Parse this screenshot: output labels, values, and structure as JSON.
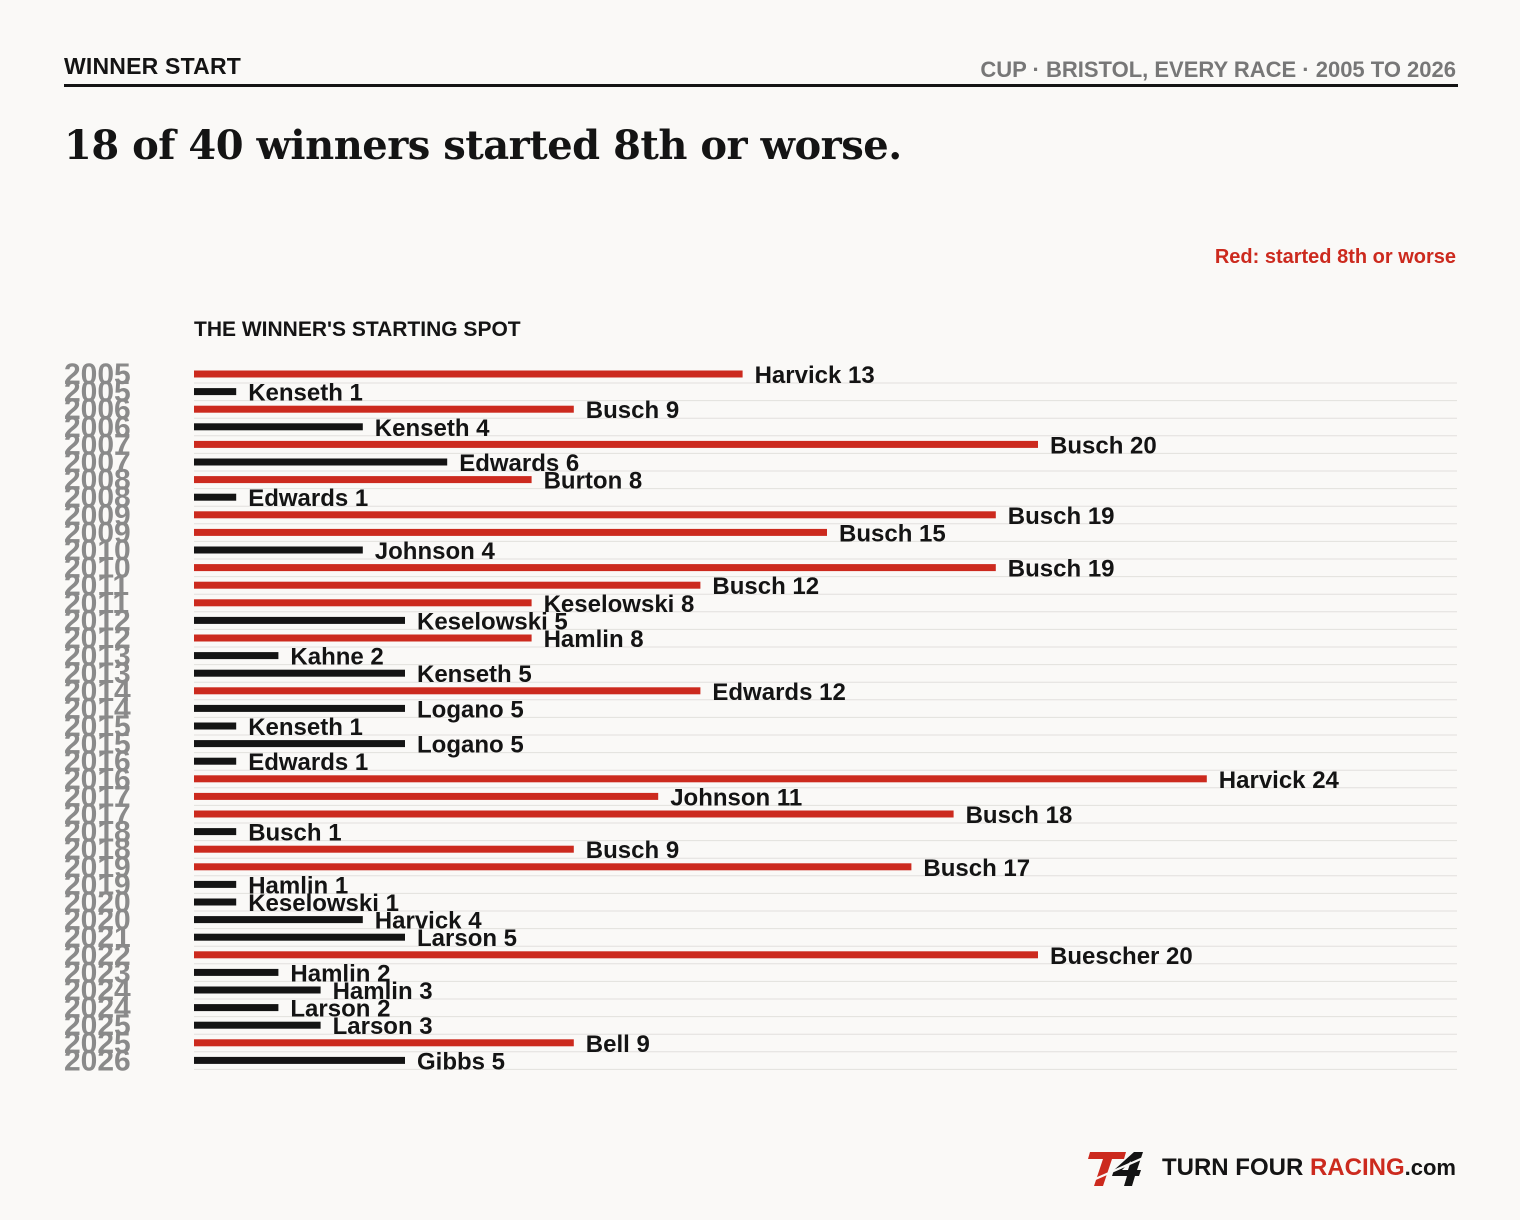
{
  "header": {
    "kicker": "WINNER START",
    "meta": "CUP · BRISTOL, EVERY RACE · 2005 TO 2026",
    "headline": "18 of 40 winners started 8th or worse.",
    "note": "Red: started 8th or worse"
  },
  "colors": {
    "highlight": "#cc2a1e",
    "normal": "#141414",
    "year_label": "#8a8a8a",
    "gridline": "#e2e0dd"
  },
  "footer": {
    "logo_icon": "t4-logo-icon",
    "brand_part1": "TURN FOUR ",
    "brand_part2": "RACING",
    "brand_part3": ".com"
  },
  "chart_data": {
    "type": "bar",
    "orientation": "horizontal",
    "xlabel": "THE WINNER'S STARTING SPOT",
    "xlim": [
      0,
      30
    ],
    "highlight_threshold": 8,
    "rows": [
      {
        "year": "2005",
        "driver": "Harvick",
        "start": 13
      },
      {
        "year": "2005",
        "driver": "Kenseth",
        "start": 1
      },
      {
        "year": "2006",
        "driver": "Busch",
        "start": 9
      },
      {
        "year": "2006",
        "driver": "Kenseth",
        "start": 4
      },
      {
        "year": "2007",
        "driver": "Busch",
        "start": 20
      },
      {
        "year": "2007",
        "driver": "Edwards",
        "start": 6
      },
      {
        "year": "2008",
        "driver": "Burton",
        "start": 8
      },
      {
        "year": "2008",
        "driver": "Edwards",
        "start": 1
      },
      {
        "year": "2009",
        "driver": "Busch",
        "start": 19
      },
      {
        "year": "2009",
        "driver": "Busch",
        "start": 15
      },
      {
        "year": "2010",
        "driver": "Johnson",
        "start": 4
      },
      {
        "year": "2010",
        "driver": "Busch",
        "start": 19
      },
      {
        "year": "2011",
        "driver": "Busch",
        "start": 12
      },
      {
        "year": "2011",
        "driver": "Keselowski",
        "start": 8
      },
      {
        "year": "2012",
        "driver": "Keselowski",
        "start": 5
      },
      {
        "year": "2012",
        "driver": "Hamlin",
        "start": 8
      },
      {
        "year": "2013",
        "driver": "Kahne",
        "start": 2
      },
      {
        "year": "2013",
        "driver": "Kenseth",
        "start": 5
      },
      {
        "year": "2014",
        "driver": "Edwards",
        "start": 12
      },
      {
        "year": "2014",
        "driver": "Logano",
        "start": 5
      },
      {
        "year": "2015",
        "driver": "Kenseth",
        "start": 1
      },
      {
        "year": "2015",
        "driver": "Logano",
        "start": 5
      },
      {
        "year": "2016",
        "driver": "Edwards",
        "start": 1
      },
      {
        "year": "2016",
        "driver": "Harvick",
        "start": 24
      },
      {
        "year": "2017",
        "driver": "Johnson",
        "start": 11
      },
      {
        "year": "2017",
        "driver": "Busch",
        "start": 18
      },
      {
        "year": "2018",
        "driver": "Busch",
        "start": 1
      },
      {
        "year": "2018",
        "driver": "Busch",
        "start": 9
      },
      {
        "year": "2019",
        "driver": "Busch",
        "start": 17
      },
      {
        "year": "2019",
        "driver": "Hamlin",
        "start": 1
      },
      {
        "year": "2020",
        "driver": "Keselowski",
        "start": 1
      },
      {
        "year": "2020",
        "driver": "Harvick",
        "start": 4
      },
      {
        "year": "2021",
        "driver": "Larson",
        "start": 5
      },
      {
        "year": "2022",
        "driver": "Buescher",
        "start": 20
      },
      {
        "year": "2023",
        "driver": "Hamlin",
        "start": 2
      },
      {
        "year": "2024",
        "driver": "Hamlin",
        "start": 3
      },
      {
        "year": "2024",
        "driver": "Larson",
        "start": 2
      },
      {
        "year": "2025",
        "driver": "Larson",
        "start": 3
      },
      {
        "year": "2025",
        "driver": "Bell",
        "start": 9
      },
      {
        "year": "2026",
        "driver": "Gibbs",
        "start": 5
      }
    ]
  }
}
